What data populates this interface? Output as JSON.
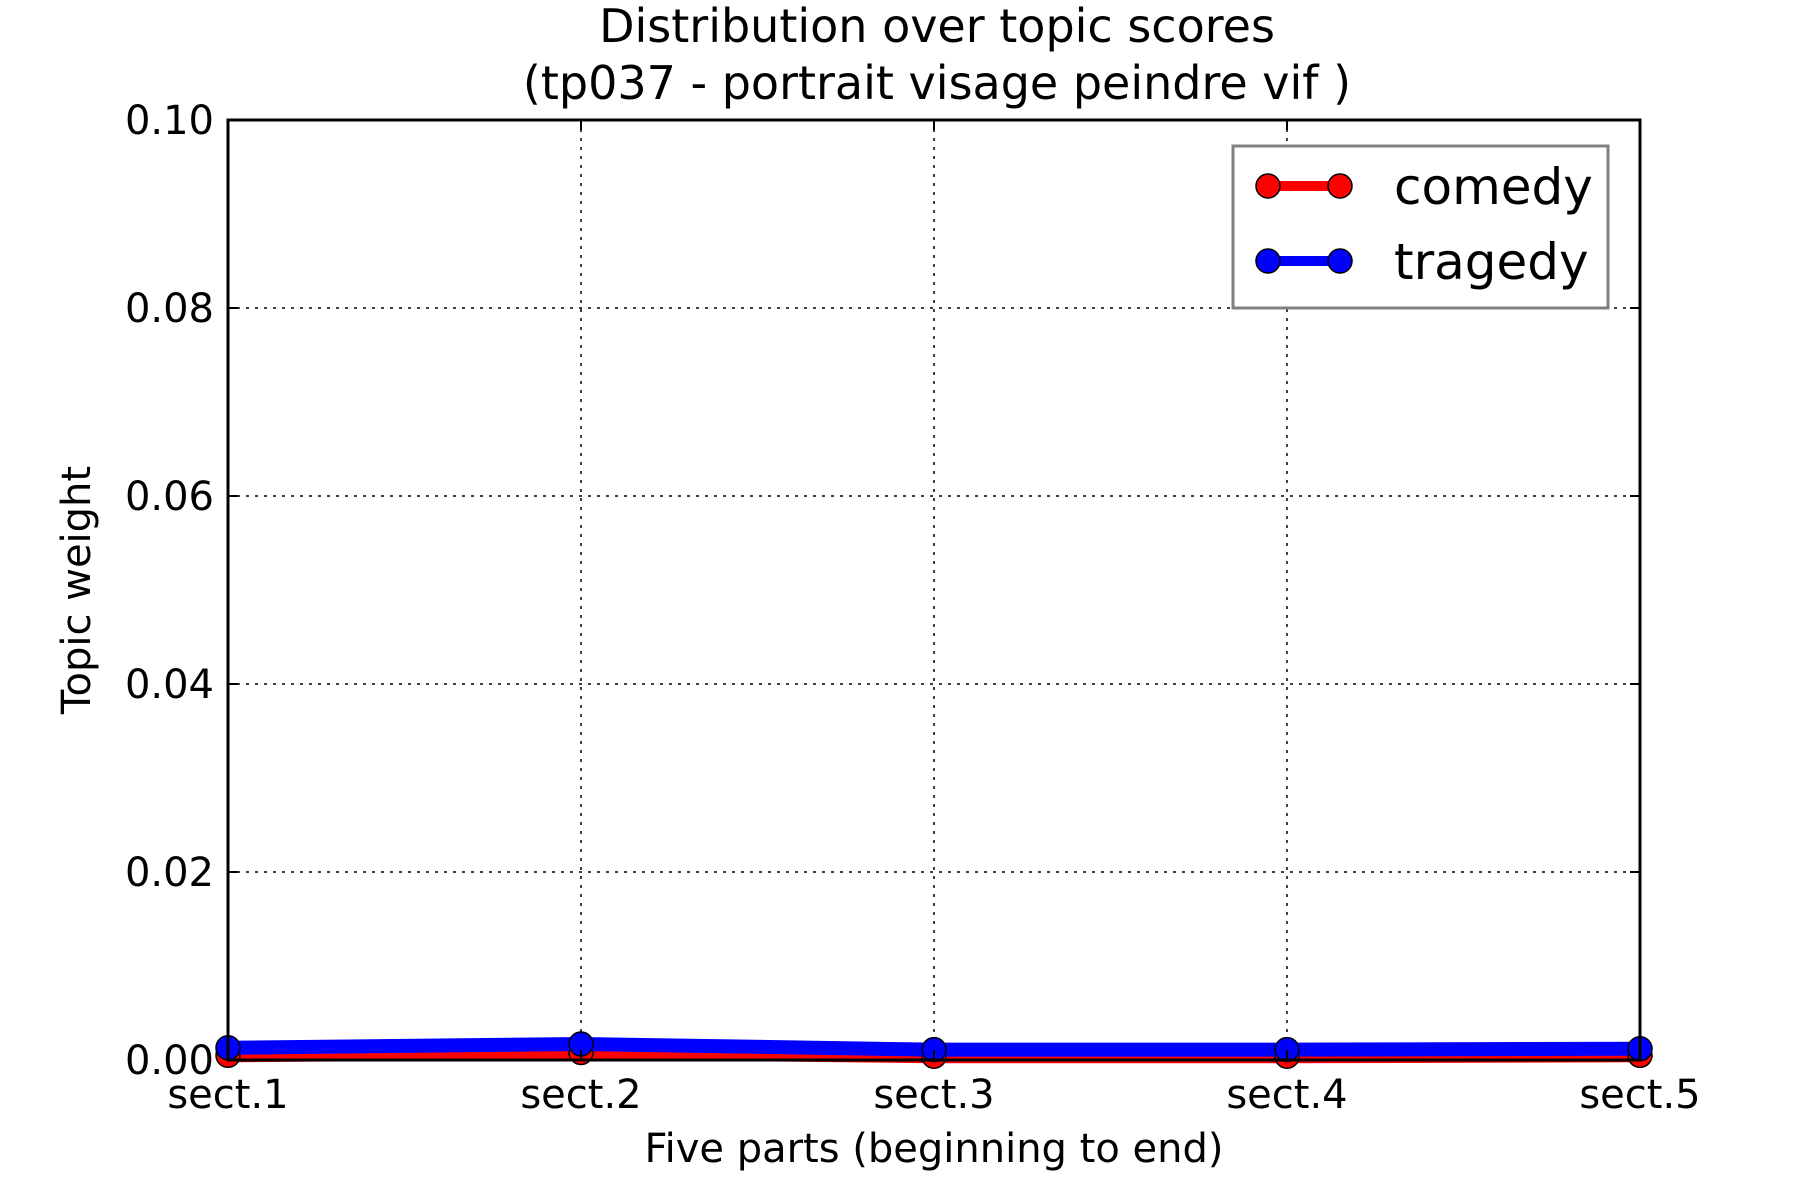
{
  "chart_data": {
    "type": "line",
    "title": "Distribution over topic scores",
    "subtitle": "(tp037 - portrait visage peindre vif )",
    "xlabel": "Five parts (beginning to end)",
    "ylabel": "Topic weight",
    "categories": [
      "sect.1",
      "sect.2",
      "sect.3",
      "sect.4",
      "sect.5"
    ],
    "ylim": [
      0,
      0.1
    ],
    "yticks": [
      "0.00",
      "0.02",
      "0.04",
      "0.06",
      "0.08",
      "0.10"
    ],
    "grid": true,
    "legend_position": "top-right",
    "series": [
      {
        "name": "comedy",
        "color": "#ff0000",
        "values": [
          0.0005,
          0.0008,
          0.0004,
          0.0004,
          0.0005
        ]
      },
      {
        "name": "tragedy",
        "color": "#0000ff",
        "values": [
          0.0013,
          0.0017,
          0.0011,
          0.0011,
          0.0012
        ]
      }
    ]
  }
}
